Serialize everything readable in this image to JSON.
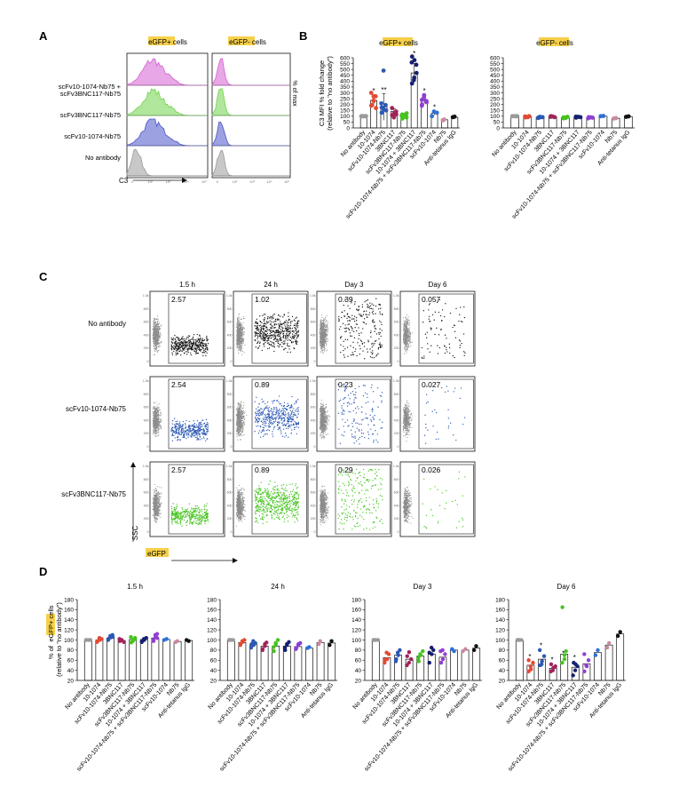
{
  "colors": {
    "pink": "#d65fd1",
    "green": "#6fd44a",
    "blue": "#4b53c8",
    "gray": "#9a9a9a",
    "red": "#e24a33",
    "blue2": "#2b58b4",
    "maroon": "#a0245a",
    "lime": "#44c41d",
    "navy": "#17206e",
    "violet": "#8f3fd1",
    "cyan": "#2f6fd8",
    "mauve": "#c98aa4",
    "black": "#111111",
    "highlight": "#f6d04a"
  },
  "panel_a": {
    "letter": "A",
    "col_titles": [
      "eGFP+ cells",
      "eGFP- cells"
    ],
    "rows": [
      "scFv10-1074-Nb75 +\nscFv3BNC117-Nb75",
      "scFv3BNC117-Nb75",
      "scFv10-1074-Nb75",
      "No antibody"
    ],
    "ylabel": "% of max",
    "xlabel": "C3"
  },
  "panel_b": {
    "letter": "B",
    "titles": [
      "eGFP+ cells",
      "eGFP- cells"
    ],
    "ylabel": "C3 MFI % fold change\n(relative to \"no antibody\")",
    "yticks": [
      "0",
      "50",
      "100",
      "150",
      "200",
      "250",
      "300",
      "350",
      "400",
      "450",
      "500",
      "550",
      "600"
    ],
    "categories": [
      "No antibody",
      "10-1074",
      "scFv10-1074-Nb75",
      "3BNC117",
      "scFv3BNC117-Nb75",
      "10-1074 + 3BNC117",
      "scFv10-1074-Nb75 + scFv3BNC117-Nb75",
      "scFv10-1074",
      "Nb75",
      "Anti-tetanus IgG"
    ],
    "sig_left": [
      "*",
      "**",
      "",
      "*",
      "*",
      "*"
    ]
  },
  "chart_data": [
    {
      "type": "bar",
      "title": "eGFP+ cells",
      "ylabel": "C3 MFI % fold change (relative to \"no antibody\")",
      "ylim": [
        0,
        600
      ],
      "categories": [
        "No antibody",
        "10-1074",
        "scFv10-1074-Nb75",
        "3BNC117",
        "scFv3BNC117-Nb75",
        "10-1074 + 3BNC117",
        "scFv10-1074-Nb75 + scFv3BNC117-Nb75",
        "scFv10-1074",
        "Nb75",
        "Anti-tetanus IgG"
      ],
      "values": [
        100,
        235,
        180,
        140,
        110,
        470,
        240,
        125,
        70,
        90
      ],
      "points": [
        [
          100,
          100,
          100,
          100,
          100,
          100
        ],
        [
          195,
          235,
          270,
          300,
          230,
          170,
          190,
          270
        ],
        [
          130,
          160,
          195,
          210,
          490,
          150,
          175
        ],
        [
          110,
          125,
          140,
          170,
          90,
          115
        ],
        [
          80,
          100,
          125,
          115,
          95,
          90,
          105
        ],
        [
          560,
          580,
          470,
          380,
          430,
          540,
          610,
          410
        ],
        [
          190,
          260,
          230,
          200,
          280,
          220,
          240
        ],
        [
          100,
          140,
          130
        ],
        [
          65,
          72
        ],
        [
          92,
          96
        ]
      ]
    },
    {
      "type": "bar",
      "title": "eGFP- cells",
      "ylim": [
        0,
        600
      ],
      "categories": [
        "No antibody",
        "10-1074",
        "scFv10-1074-Nb75",
        "3BNC117",
        "scFv3BNC117-Nb75",
        "10-1074 + 3BNC117",
        "scFv10-1074-Nb75 + scFv3BNC117-Nb75",
        "scFv10-1074",
        "Nb75",
        "Anti-tetanus IgG"
      ],
      "values": [
        100,
        95,
        90,
        95,
        88,
        92,
        87,
        100,
        82,
        97
      ],
      "points": [
        [
          100,
          100,
          100,
          100,
          100,
          100
        ],
        [
          90,
          95,
          100,
          98,
          92
        ],
        [
          85,
          90,
          92,
          88,
          95
        ],
        [
          95,
          98,
          92,
          100
        ],
        [
          82,
          88,
          95,
          90,
          85
        ],
        [
          88,
          95,
          92,
          96
        ],
        [
          82,
          90,
          88,
          92
        ],
        [
          100,
          102
        ],
        [
          80,
          84
        ],
        [
          95,
          99
        ]
      ]
    },
    {
      "type": "scatter",
      "panel": "C",
      "time_points": [
        "1.5 h",
        "24 h",
        "Day 3",
        "Day 6"
      ],
      "rows": [
        "No antibody",
        "scFv10-1074-Nb75",
        "scFv3BNC117-Nb75"
      ],
      "values": [
        [
          "2.57",
          "1.02",
          "0.39",
          "0.057"
        ],
        [
          "2.54",
          "0.89",
          "0.23",
          "0.027"
        ],
        [
          "2.57",
          "0.89",
          "0.29",
          "0.026"
        ]
      ],
      "xlabel": "eGFP",
      "ylabel": "SSC"
    },
    {
      "type": "bar",
      "panel": "D",
      "titles": [
        "1.5 h",
        "24 h",
        "Day 3",
        "Day 6"
      ],
      "ylabel": "% of eGFP+ cells (relative to \"no antibody\")",
      "ylim": [
        20,
        180
      ],
      "categories": [
        "No antibody",
        "10-1074",
        "scFv10-1074-Nb75",
        "3BNC117",
        "scFv3BNC117-Nb75",
        "10-1074 + 3BNC117",
        "scFv10-1074-Nb75 + scFv3BNC117-Nb75",
        "scFv10-1074",
        "Nb75",
        "Anti-tetanus IgG"
      ],
      "series": [
        {
          "values": [
            100,
            100,
            104,
            99,
            101,
            101,
            104,
            101,
            97,
            99
          ]
        },
        {
          "values": [
            100,
            95,
            91,
            88,
            88,
            88,
            87,
            84,
            95,
            94
          ]
        },
        {
          "values": [
            100,
            65,
            70,
            62,
            68,
            72,
            66,
            80,
            80,
            84
          ]
        },
        {
          "values": [
            100,
            50,
            62,
            44,
            72,
            46,
            53,
            75,
            90,
            112
          ]
        }
      ],
      "points": [
        [
          [
            100,
            100,
            100,
            100
          ],
          [
            96,
            100,
            102,
            98,
            104
          ],
          [
            100,
            105,
            110,
            102,
            108,
            106
          ],
          [
            98,
            100,
            96,
            102,
            100
          ],
          [
            95,
            100,
            104,
            106,
            98,
            102
          ],
          [
            96,
            100,
            104,
            98,
            102
          ],
          [
            100,
            110,
            104,
            98,
            106,
            112
          ],
          [
            100,
            102
          ],
          [
            96,
            98
          ],
          [
            100,
            98
          ]
        ],
        [
          [
            100,
            100,
            100,
            100
          ],
          [
            92,
            98,
            100,
            90,
            96
          ],
          [
            85,
            90,
            94,
            92,
            98
          ],
          [
            82,
            88,
            95,
            80,
            92
          ],
          [
            78,
            92,
            100,
            86,
            94
          ],
          [
            80,
            92,
            96,
            84,
            90
          ],
          [
            82,
            90,
            94,
            84,
            92
          ],
          [
            84,
            86
          ],
          [
            92,
            98
          ],
          [
            90,
            98
          ]
        ],
        [
          [
            100,
            100,
            100,
            100
          ],
          [
            55,
            62,
            72,
            60,
            75
          ],
          [
            58,
            70,
            80,
            62,
            75
          ],
          [
            50,
            55,
            62,
            68,
            76
          ],
          [
            58,
            72,
            78,
            64,
            70
          ],
          [
            55,
            72,
            80,
            75,
            85
          ],
          [
            55,
            62,
            72,
            78,
            80
          ],
          [
            82,
            78
          ],
          [
            78,
            82
          ],
          [
            80,
            88
          ]
        ],
        [
          [
            100,
            100,
            100,
            100
          ],
          [
            38,
            48,
            55,
            60,
            42
          ],
          [
            50,
            58,
            68,
            80,
            52
          ],
          [
            38,
            40,
            48,
            52,
            45
          ],
          [
            55,
            62,
            78,
            165,
            70
          ],
          [
            30,
            40,
            48,
            55,
            52
          ],
          [
            38,
            50,
            60,
            72,
            48
          ],
          [
            70,
            80
          ],
          [
            85,
            94
          ],
          [
            108,
            116
          ]
        ]
      ],
      "significance": [
        [],
        [],
        [],
        [
          "*",
          "*",
          "*",
          "*",
          "*"
        ]
      ]
    }
  ]
}
